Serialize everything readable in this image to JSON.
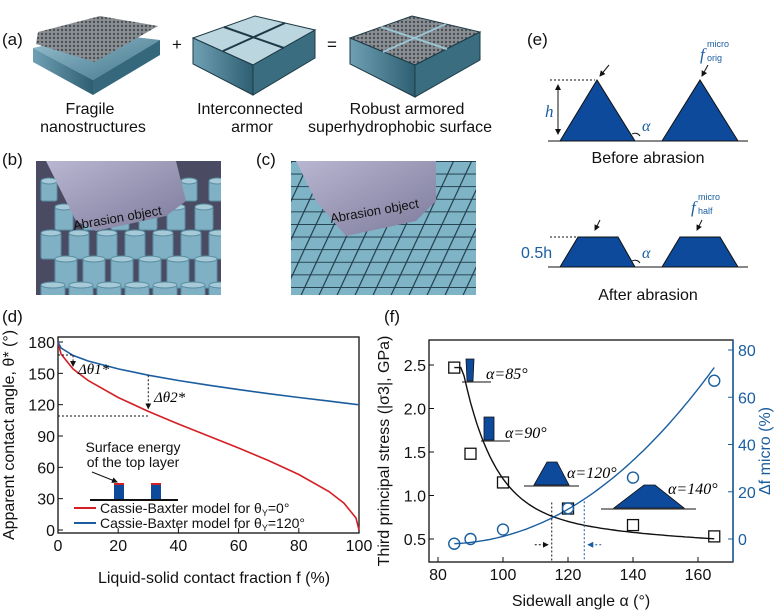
{
  "panels": {
    "a": {
      "label": "(a)",
      "plus": "+",
      "equals": "=",
      "items": [
        {
          "line1": "Fragile",
          "line2": "nanostructures"
        },
        {
          "line1": "Interconnected",
          "line2": "armor"
        },
        {
          "line1": "Robust armored",
          "line2": "superhydrophobic surface"
        }
      ]
    },
    "b": {
      "label": "(b)",
      "object_text": "Abrasion object"
    },
    "c": {
      "label": "(c)",
      "object_text": "Abrasion object"
    },
    "d": {
      "label": "(d)",
      "inset_line1": "Surface energy",
      "inset_line2": "of the top layer",
      "delta1": "Δθ",
      "delta2": "Δθ",
      "delta1_sub": "1",
      "delta2_sub": "2",
      "star": "*"
    },
    "e": {
      "label": "(e)",
      "h": "h",
      "half_h": "0.5h",
      "alpha": "α",
      "f_symbol": "f",
      "micro": "micro",
      "orig": "orig",
      "half": "half",
      "before": "Before abrasion",
      "after": "After abrasion"
    },
    "f": {
      "label": "(f)"
    }
  },
  "colors": {
    "red": "#d41f26",
    "blue": "#1a5ea0",
    "navy": "#0d4a9c",
    "black": "#111111"
  },
  "chart_data": [
    {
      "type": "line",
      "title": "",
      "xlabel": "Liquid-solid contact fraction f (%)",
      "ylabel": "Apparent contact angle, θ* (°)",
      "xlim": [
        0,
        100
      ],
      "ylim": [
        0,
        180
      ],
      "xticks": [
        "0",
        "20",
        "40",
        "60",
        "80",
        "100"
      ],
      "yticks": [
        "0",
        "30",
        "60",
        "90",
        "120",
        "150",
        "180"
      ],
      "legend_placement": "bottom-left",
      "x": [
        0,
        1,
        5,
        10,
        20,
        30,
        40,
        50,
        60,
        70,
        80,
        90,
        95,
        99,
        100
      ],
      "series": [
        {
          "name": "Cassie-Baxter model for θY=0°",
          "legend_prefix": "Cassie-Baxter model for θ",
          "legend_sub": "Y",
          "legend_suffix": "=0°",
          "color": "#d41f26",
          "values": [
            180,
            168.5,
            154.2,
            143.1,
            126.9,
            113.6,
            101.5,
            90,
            78.5,
            66.4,
            53.1,
            36.9,
            25.8,
            11.5,
            0
          ]
        },
        {
          "name": "Cassie-Baxter model for θY=120°",
          "legend_prefix": "Cassie-Baxter model for θ",
          "legend_sub": "Y",
          "legend_suffix": "=120°",
          "color": "#1a5ea0",
          "values": [
            180,
            174.3,
            167.2,
            161.8,
            154.2,
            148.2,
            143.1,
            138.6,
            134.4,
            130.5,
            126.9,
            123.4,
            121.7,
            120.3,
            120
          ]
        }
      ],
      "annotations": [
        {
          "text": "Δθ1*",
          "f": 5,
          "from": 167.2,
          "to": 154.2
        },
        {
          "text": "Δθ2*",
          "f": 30,
          "from": 148.2,
          "to": 113.6
        }
      ]
    },
    {
      "type": "scatter",
      "title": "",
      "xlabel": "Sidewall angle α (°)",
      "ylabel": "Third principal stress (|σ3|, GPa)",
      "y2label": "Δf micro (%)",
      "xlim": [
        78,
        172
      ],
      "ylim": [
        0.25,
        2.8
      ],
      "y2lim": [
        -10,
        85
      ],
      "xticks": [
        "80",
        "100",
        "120",
        "140",
        "160"
      ],
      "yticks": [
        "0.5",
        "1.0",
        "1.5",
        "2.0",
        "2.5"
      ],
      "y2ticks": [
        "0",
        "20",
        "40",
        "60",
        "80"
      ],
      "x": [
        85,
        90,
        100,
        120,
        140,
        165
      ],
      "series": [
        {
          "name": "Third principal stress",
          "axis": "left",
          "marker": "square",
          "color": "#111111",
          "values": [
            2.47,
            1.48,
            1.15,
            0.85,
            0.66,
            0.53
          ]
        },
        {
          "name": "Δf micro",
          "axis": "right",
          "marker": "circle",
          "color": "#1a5ea0",
          "values": [
            -2,
            0,
            4,
            13,
            26,
            67
          ]
        }
      ],
      "insets": [
        "α=85°",
        "α=90°",
        "α=120°",
        "α=140°"
      ],
      "marked_angles": [
        115,
        125
      ]
    }
  ]
}
